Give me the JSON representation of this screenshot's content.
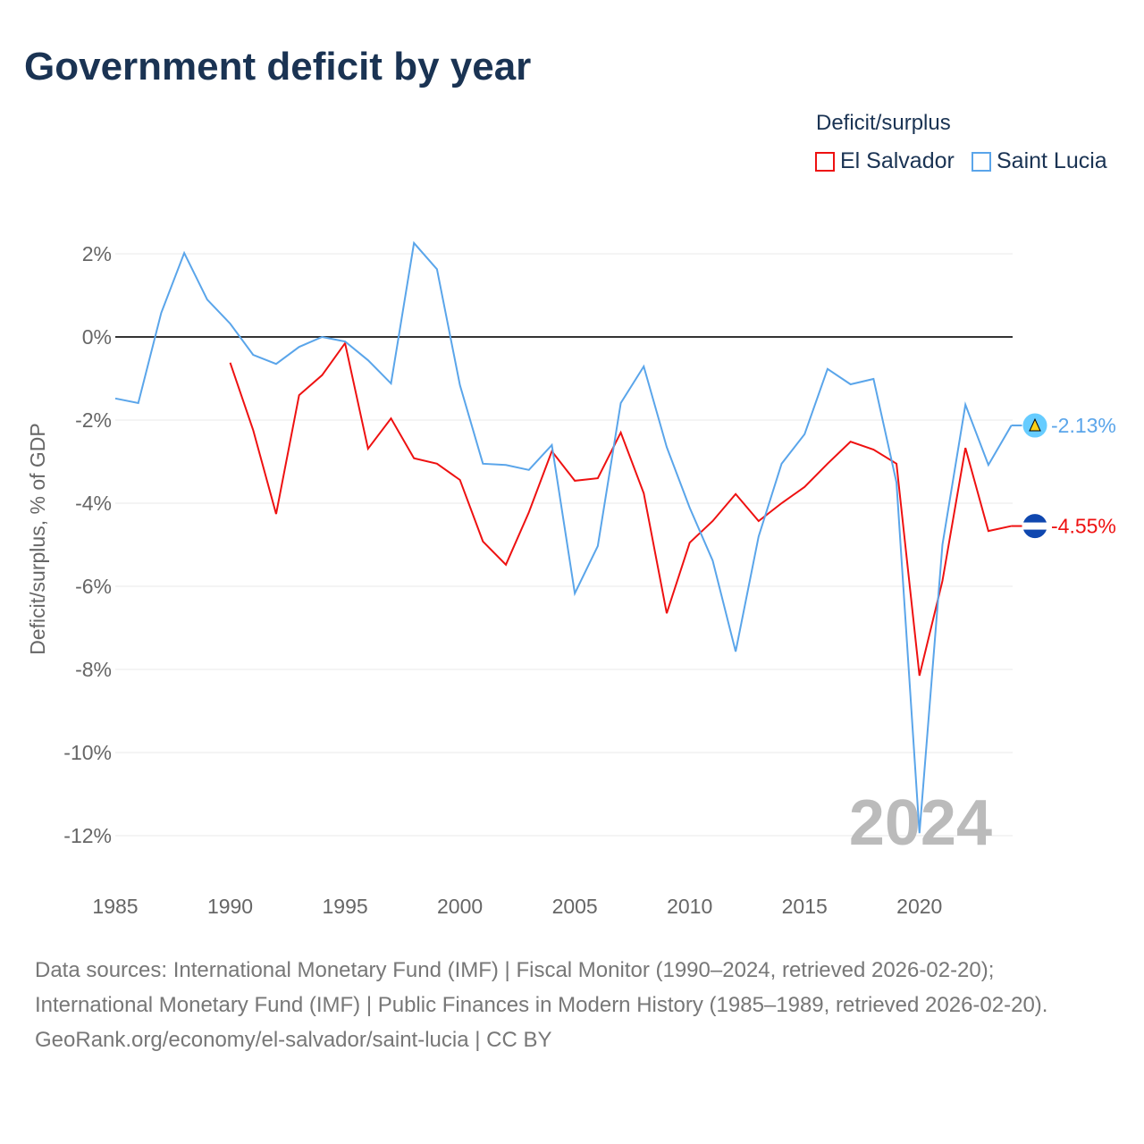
{
  "title": "Government deficit by year",
  "legend": {
    "title": "Deficit/surplus",
    "items": [
      "El Salvador",
      "Saint Lucia"
    ]
  },
  "footer": {
    "line1": "Data sources: International Monetary Fund (IMF) | Fiscal Monitor (1990–2024, retrieved 2026-02-20); International Monetary Fund (IMF) | Public Finances in Modern History (1985–1989, retrieved 2026-02-20).",
    "line2": "GeoRank.org/economy/el-salvador/saint-lucia | CC BY"
  },
  "chart_data": {
    "type": "line",
    "title": "Government deficit by year",
    "ylabel": "Deficit/surplus, % of GDP",
    "xlabel": "",
    "ylim": [
      -12,
      2
    ],
    "xlim": [
      1985,
      2024
    ],
    "yticks": [
      2,
      0,
      -2,
      -4,
      -6,
      -8,
      -10,
      -12
    ],
    "ytick_labels": [
      "2%",
      "0%",
      "-2%",
      "-4%",
      "-6%",
      "-8%",
      "-10%",
      "-12%"
    ],
    "xticks": [
      "1985",
      "1990",
      "1995",
      "2000",
      "2005",
      "2010",
      "2015",
      "2020"
    ],
    "year_watermark": "2024",
    "series": [
      {
        "name": "El Salvador",
        "color": "#ee1111",
        "end_label": "-4.55%",
        "start": 1990,
        "values": [
          -0.62,
          -2.24,
          -4.26,
          -1.4,
          -0.92,
          -0.15,
          -2.69,
          -1.96,
          -2.92,
          -3.05,
          -3.44,
          -4.92,
          -5.48,
          -4.22,
          -2.75,
          -3.46,
          -3.4,
          -2.3,
          -3.76,
          -6.65,
          -4.95,
          -4.43,
          -3.78,
          -4.43,
          -4.0,
          -3.61,
          -3.05,
          -2.52,
          -2.71,
          -3.05,
          -8.15,
          -5.87,
          -2.67,
          -4.67,
          -4.55
        ]
      },
      {
        "name": "Saint Lucia",
        "color": "#5aa5ea",
        "end_label": "-2.13%",
        "start": 1985,
        "values": [
          -1.48,
          -1.59,
          0.58,
          2.02,
          0.9,
          0.32,
          -0.43,
          -0.65,
          -0.24,
          0.0,
          -0.11,
          -0.56,
          -1.12,
          2.26,
          1.63,
          -1.16,
          -3.05,
          -3.08,
          -3.2,
          -2.6,
          -6.17,
          -5.03,
          -1.59,
          -0.71,
          -2.65,
          -4.11,
          -5.38,
          -7.57,
          -4.8,
          -3.05,
          -2.34,
          -0.77,
          -1.14,
          -1.01,
          -3.5,
          -11.94,
          -5.0,
          -1.63,
          -3.08,
          -2.13
        ]
      }
    ]
  }
}
